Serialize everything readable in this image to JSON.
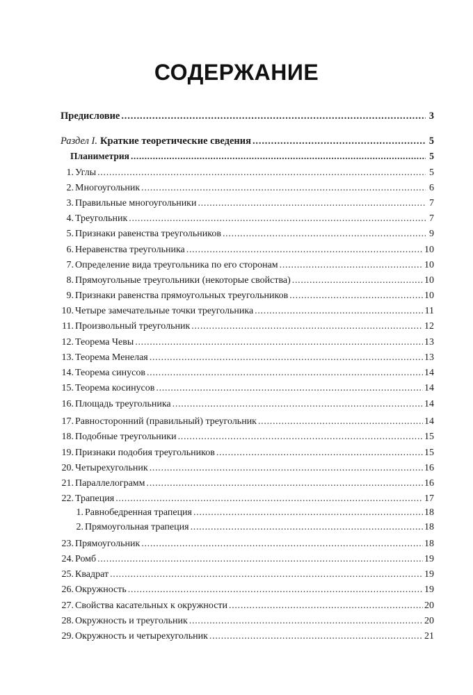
{
  "title": "СОДЕРЖАНИЕ",
  "preface": {
    "text": "Предисловие",
    "page": "3"
  },
  "section": {
    "prefix": "Раздел I.",
    "text": "Краткие теоретические сведения",
    "page": "5"
  },
  "subsection": {
    "text": "Планиметрия",
    "page": "5"
  },
  "items": [
    {
      "num": "1.",
      "text": "Углы",
      "page": "5"
    },
    {
      "num": "2.",
      "text": "Многоугольник",
      "page": "6"
    },
    {
      "num": "3.",
      "text": "Правильные многоугольники",
      "page": "7"
    },
    {
      "num": "4.",
      "text": "Треугольник",
      "page": "7"
    },
    {
      "num": "5.",
      "text": "Признаки равенства треугольников",
      "page": "9"
    },
    {
      "num": "6.",
      "text": "Неравенства треугольника",
      "page": "10"
    },
    {
      "num": "7.",
      "text": "Определение вида треугольника по его сторонам",
      "page": "10"
    },
    {
      "num": "8.",
      "text": "Прямоугольные треугольники (некоторые свойства)",
      "page": "10"
    },
    {
      "num": "9.",
      "text": "Признаки равенства прямоугольных треугольников",
      "page": "10"
    },
    {
      "num": "10.",
      "text": "Четыре замечательные точки треугольника",
      "page": "11"
    },
    {
      "num": "11.",
      "text": "Произвольный треугольник",
      "page": "12"
    },
    {
      "num": "12.",
      "text": "Теорема Чевы",
      "page": "13"
    },
    {
      "num": "13.",
      "text": "Теорема Менелая",
      "page": "13"
    },
    {
      "num": "14.",
      "text": "Теорема синусов",
      "page": "14"
    },
    {
      "num": "15.",
      "text": "Теорема косинусов",
      "page": "14"
    },
    {
      "num": "16.",
      "text": "Площадь треугольника",
      "page": "14"
    },
    {
      "num": "17.",
      "text": "Равносторонний (правильный) треугольник",
      "page": "14"
    },
    {
      "num": "18.",
      "text": "Подобные треугольники",
      "page": "15"
    },
    {
      "num": "19.",
      "text": "Признаки подобия треугольников",
      "page": "15"
    },
    {
      "num": "20.",
      "text": "Четырехугольник",
      "page": "16"
    },
    {
      "num": "21.",
      "text": "Параллелограмм",
      "page": "16"
    },
    {
      "num": "22.",
      "text": "Трапеция",
      "page": "17"
    },
    {
      "num": "1.",
      "text": "Равнобедренная трапеция",
      "page": "18",
      "sub": true
    },
    {
      "num": "2.",
      "text": "Прямоугольная трапеция",
      "page": "18",
      "sub": true
    },
    {
      "num": "23.",
      "text": "Прямоугольник",
      "page": "18"
    },
    {
      "num": "24.",
      "text": "Ромб",
      "page": "19"
    },
    {
      "num": "25.",
      "text": "Квадрат",
      "page": "19"
    },
    {
      "num": "26.",
      "text": "Окружность",
      "page": "19"
    },
    {
      "num": "27.",
      "text": "Свойства касательных к окружности",
      "page": "20"
    },
    {
      "num": "28.",
      "text": "Окружность и треугольник",
      "page": "20"
    },
    {
      "num": "29.",
      "text": "Окружность и четырехугольник",
      "page": "21"
    }
  ]
}
